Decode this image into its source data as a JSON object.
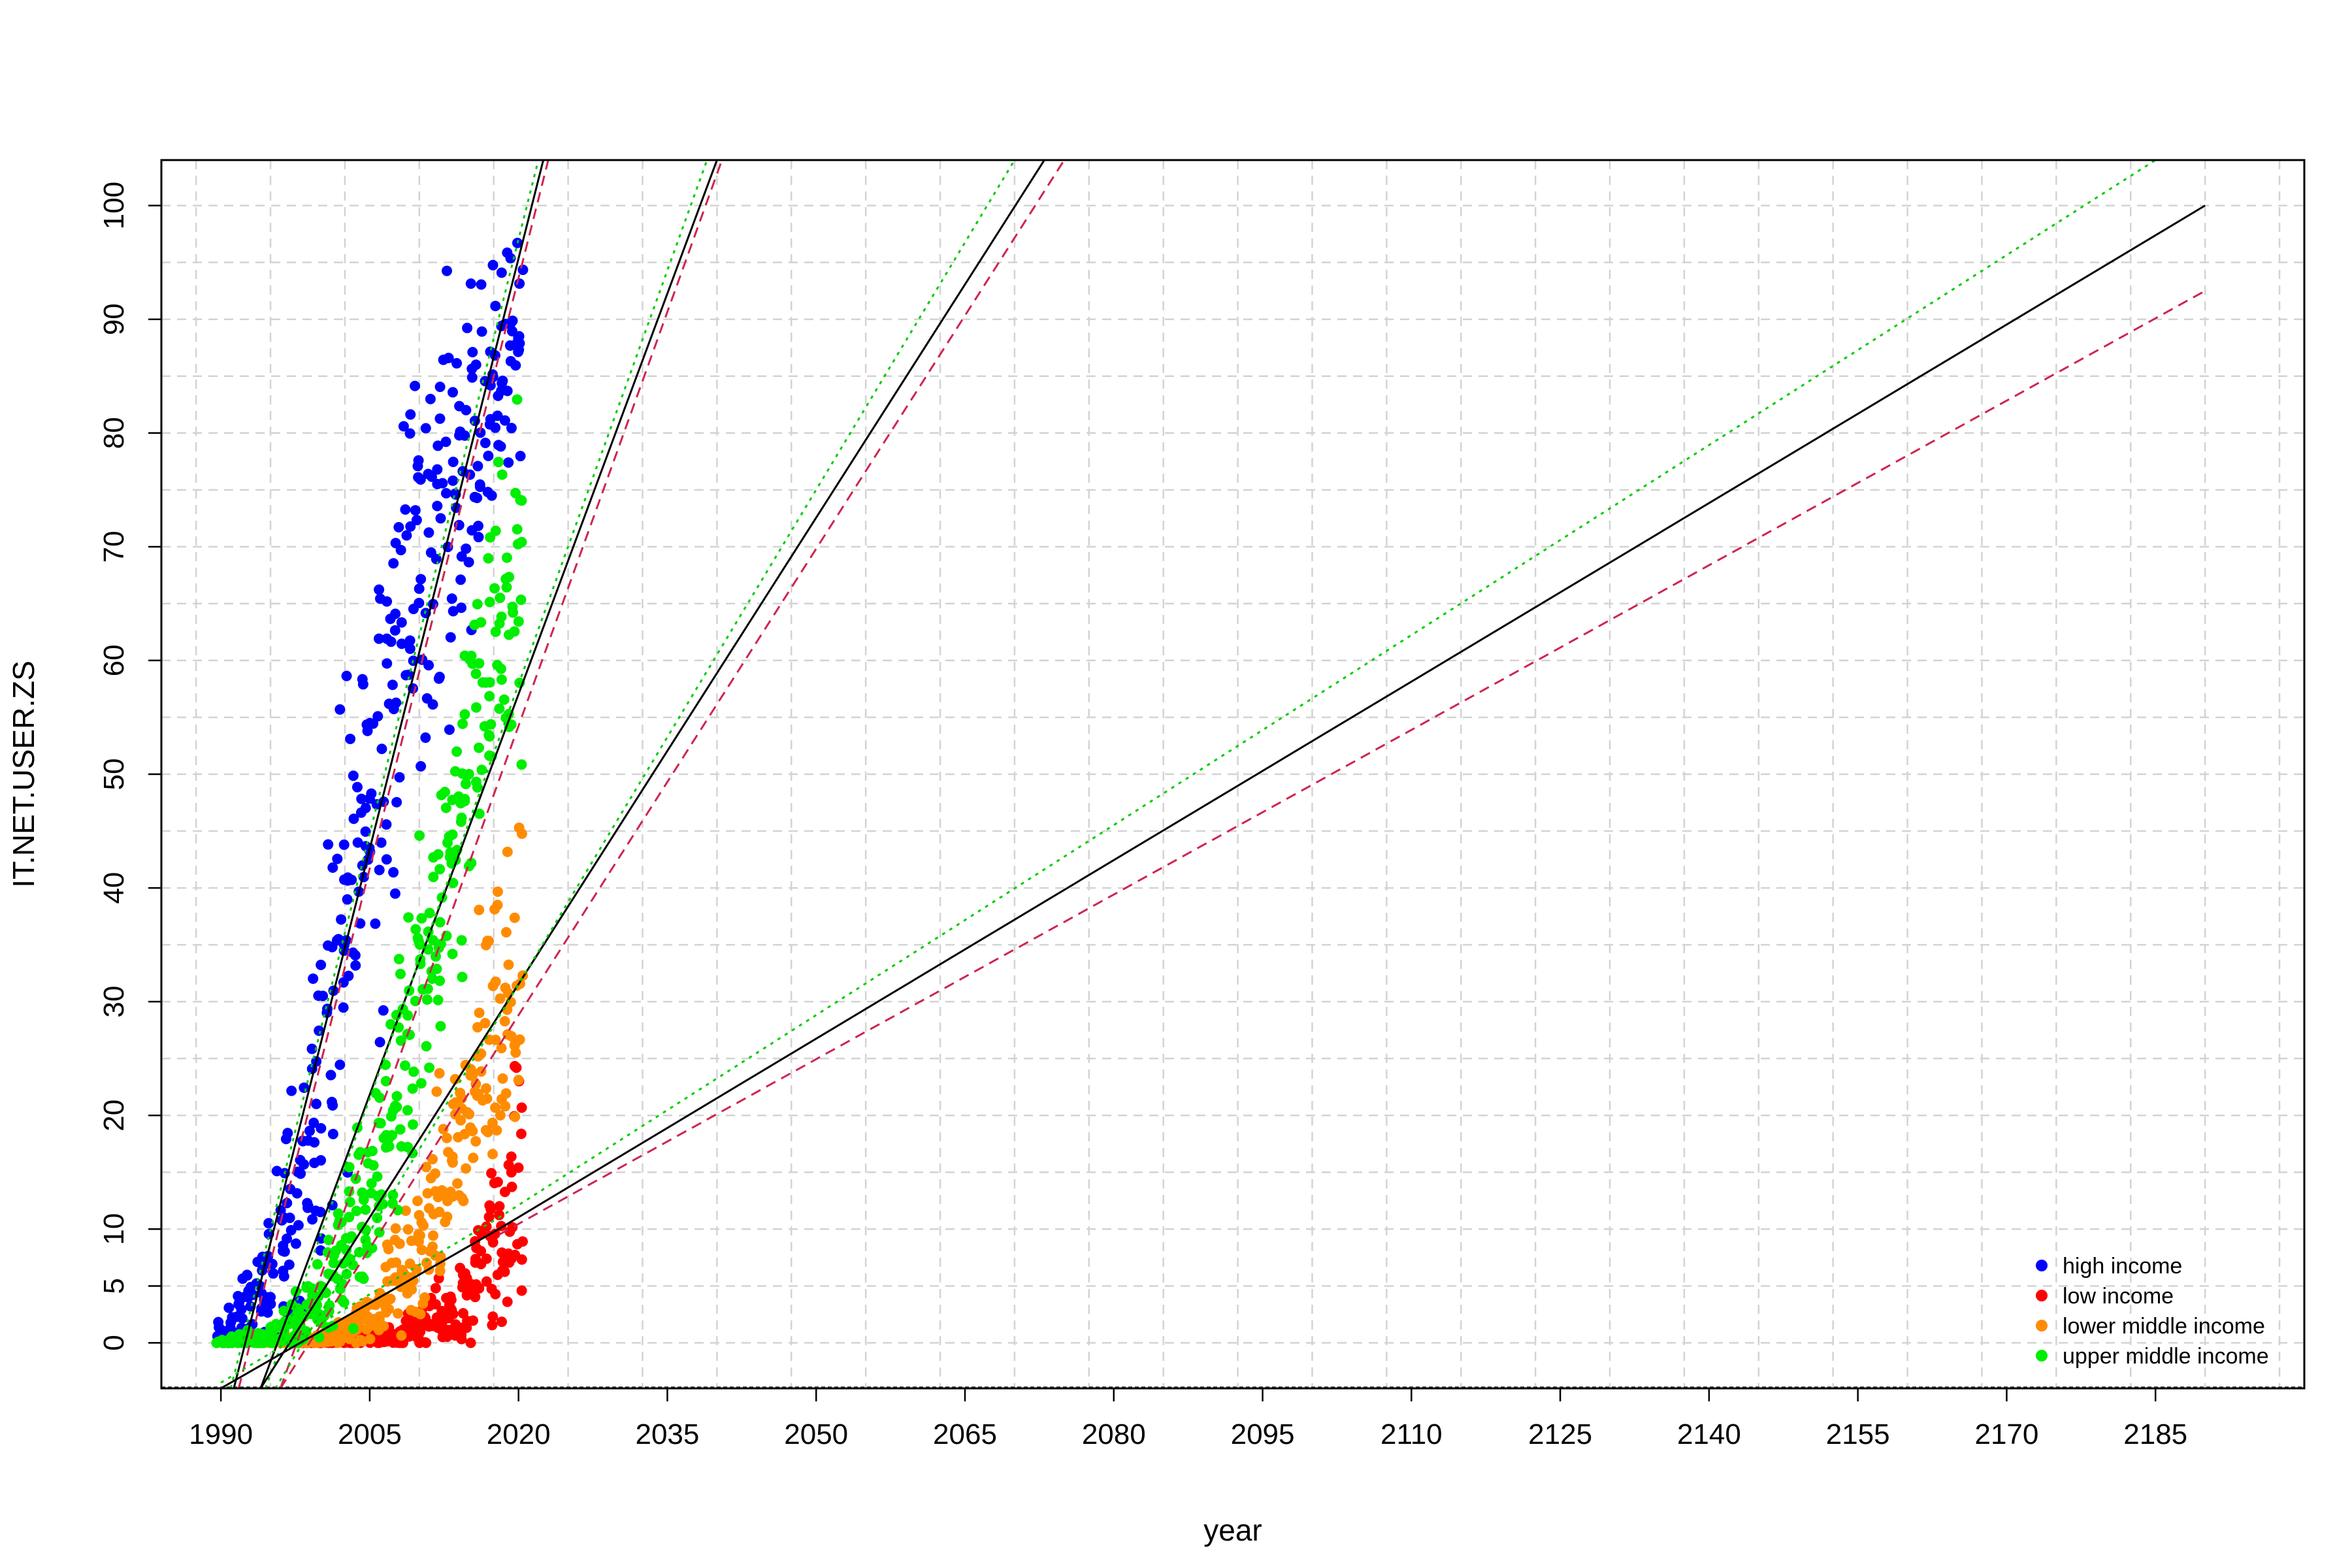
{
  "chart_data": {
    "type": "scatter",
    "title": "",
    "xlabel": "year",
    "ylabel": "IT.NET.USER.ZS",
    "xlim": [
      1984,
      2200
    ],
    "ylim": [
      -4,
      104
    ],
    "x_ticks": [
      1990,
      2005,
      2020,
      2035,
      2050,
      2065,
      2080,
      2095,
      2110,
      2125,
      2140,
      2155,
      2170,
      2185
    ],
    "y_ticks": [
      0,
      5,
      10,
      20,
      30,
      40,
      50,
      60,
      70,
      80,
      90,
      100
    ],
    "grid": true,
    "legend_position": "bottom-right",
    "series": [
      {
        "name": "high income",
        "color": "#0000ff",
        "x_range": [
          1990,
          2020
        ],
        "y_at_x": [
          [
            1990,
            0.5
          ],
          [
            1995,
            5
          ],
          [
            2000,
            22
          ],
          [
            2005,
            50
          ],
          [
            2010,
            68
          ],
          [
            2015,
            80
          ],
          [
            2020,
            88
          ]
        ],
        "spread": [
          [
            1990,
            1.2
          ],
          [
            1995,
            5
          ],
          [
            2000,
            15
          ],
          [
            2005,
            20
          ],
          [
            2010,
            18
          ],
          [
            2015,
            13
          ],
          [
            2020,
            8
          ]
        ]
      },
      {
        "name": "low income",
        "color": "#ff0000",
        "x_range": [
          1998,
          2020
        ],
        "y_at_x": [
          [
            1998,
            0
          ],
          [
            2005,
            0.3
          ],
          [
            2010,
            1.2
          ],
          [
            2015,
            3.5
          ],
          [
            2020,
            12
          ]
        ],
        "spread": [
          [
            1998,
            0.1
          ],
          [
            2005,
            0.5
          ],
          [
            2010,
            1.5
          ],
          [
            2015,
            4
          ],
          [
            2020,
            10
          ]
        ]
      },
      {
        "name": "lower middle income",
        "color": "#ff8c00",
        "x_range": [
          1994,
          2020
        ],
        "y_at_x": [
          [
            1994,
            0
          ],
          [
            2000,
            0.3
          ],
          [
            2005,
            2
          ],
          [
            2010,
            8
          ],
          [
            2015,
            20
          ],
          [
            2020,
            35
          ]
        ],
        "spread": [
          [
            1994,
            0.1
          ],
          [
            2000,
            0.5
          ],
          [
            2005,
            2
          ],
          [
            2010,
            6
          ],
          [
            2015,
            10
          ],
          [
            2020,
            14
          ]
        ]
      },
      {
        "name": "upper middle income",
        "color": "#00ee00",
        "x_range": [
          1990,
          2020
        ],
        "y_at_x": [
          [
            1990,
            0
          ],
          [
            1995,
            0.5
          ],
          [
            2000,
            4
          ],
          [
            2005,
            12
          ],
          [
            2010,
            30
          ],
          [
            2015,
            52
          ],
          [
            2020,
            68
          ]
        ],
        "spread": [
          [
            1990,
            0.2
          ],
          [
            1995,
            1
          ],
          [
            2000,
            4
          ],
          [
            2005,
            8
          ],
          [
            2010,
            12
          ],
          [
            2015,
            12
          ],
          [
            2020,
            12
          ]
        ]
      }
    ],
    "fit_lines": [
      {
        "style": "solid",
        "color": "#000000",
        "points": [
          [
            1991.3,
            -4
          ],
          [
            2022.5,
            104
          ]
        ]
      },
      {
        "style": "dashed",
        "color": "#cd2650",
        "points": [
          [
            1991.8,
            -4
          ],
          [
            2023.0,
            104
          ]
        ]
      },
      {
        "style": "dotted",
        "color": "#00cc00",
        "points": [
          [
            1991.0,
            -4
          ],
          [
            2022.0,
            104
          ]
        ]
      },
      {
        "style": "solid",
        "color": "#000000",
        "points": [
          [
            1994.0,
            -4
          ],
          [
            2040.0,
            104
          ]
        ]
      },
      {
        "style": "dashed",
        "color": "#cd2650",
        "points": [
          [
            1996.0,
            -4
          ],
          [
            2040.5,
            104
          ]
        ]
      },
      {
        "style": "dotted",
        "color": "#00cc00",
        "points": [
          [
            1994.5,
            -4
          ],
          [
            2039.0,
            104
          ]
        ]
      },
      {
        "style": "solid",
        "color": "#000000",
        "points": [
          [
            1994.0,
            -4
          ],
          [
            2073.0,
            104
          ]
        ]
      },
      {
        "style": "dashed",
        "color": "#cd2650",
        "points": [
          [
            1996.0,
            -4
          ],
          [
            2075.0,
            104
          ]
        ]
      },
      {
        "style": "dotted",
        "color": "#00cc00",
        "points": [
          [
            1995.5,
            -4
          ],
          [
            2070.0,
            104
          ]
        ]
      },
      {
        "style": "solid",
        "color": "#000000",
        "points": [
          [
            1990.0,
            -4
          ],
          [
            2018.0,
            10
          ],
          [
            2190.0,
            100
          ]
        ]
      },
      {
        "style": "dashed",
        "color": "#cd2650",
        "points": [
          [
            2018.0,
            9.5
          ],
          [
            2190.0,
            92.5
          ]
        ]
      },
      {
        "style": "dotted",
        "color": "#00cc00",
        "points": [
          [
            1990.0,
            -3.5
          ],
          [
            2018.0,
            11
          ],
          [
            2185.0,
            104
          ]
        ]
      }
    ]
  }
}
